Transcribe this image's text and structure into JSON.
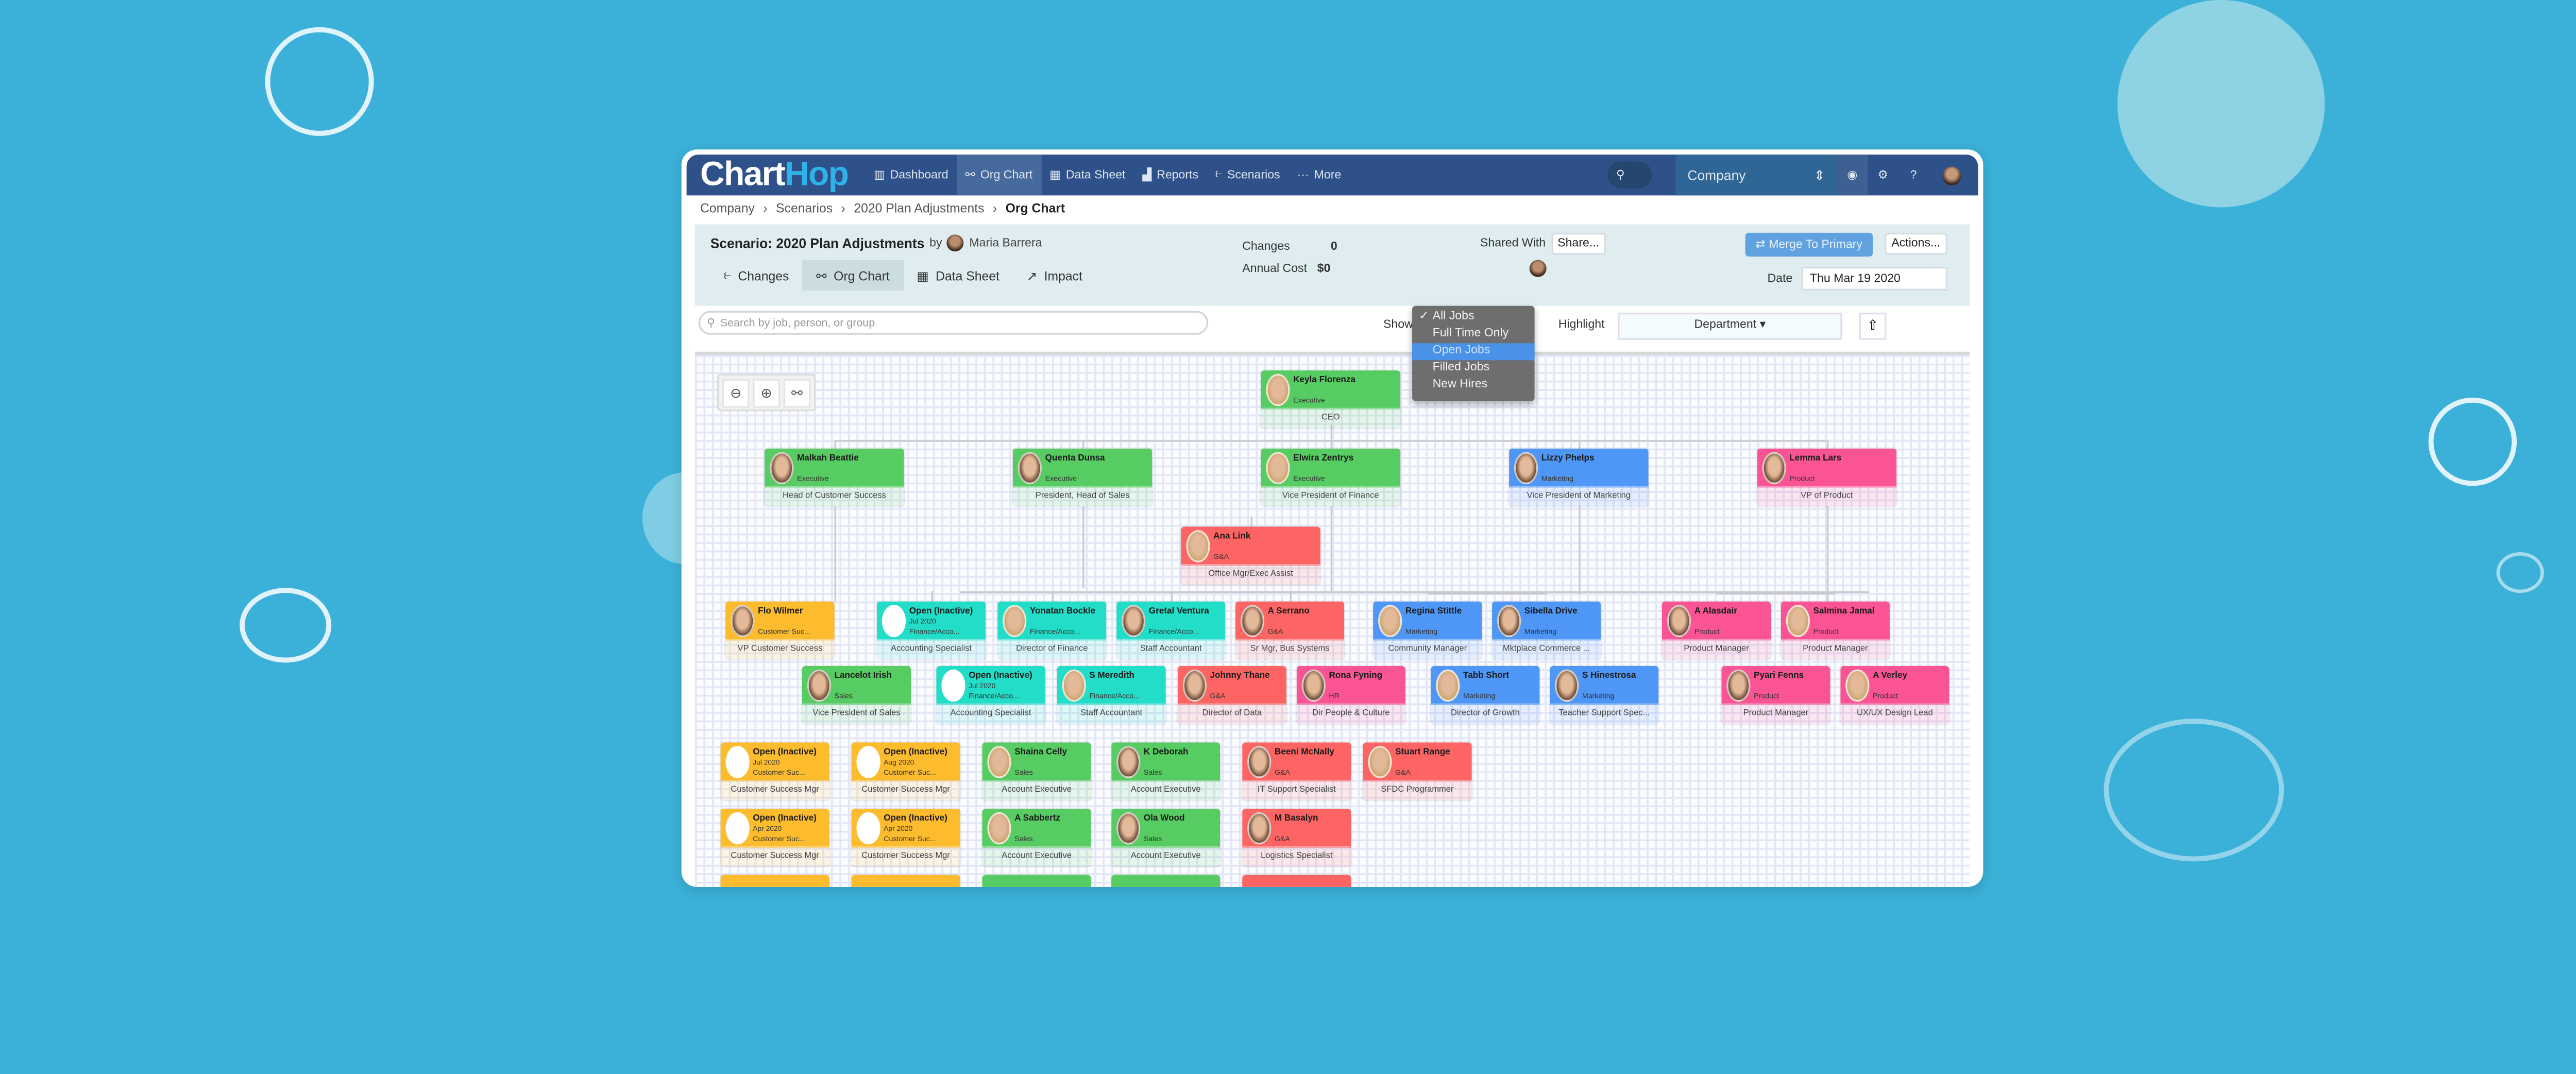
{
  "nav": {
    "logo": "ChartHop",
    "items": [
      {
        "label": "Dashboard",
        "icon": "bar-chart-icon"
      },
      {
        "label": "Org Chart",
        "icon": "org-chart-icon",
        "active": true
      },
      {
        "label": "Data Sheet",
        "icon": "table-icon"
      },
      {
        "label": "Reports",
        "icon": "reports-icon"
      },
      {
        "label": "Scenarios",
        "icon": "scenarios-icon"
      },
      {
        "label": "More",
        "icon": "more-icon"
      }
    ],
    "company_select": "Company"
  },
  "breadcrumb": [
    "Company",
    "Scenarios",
    "2020 Plan Adjustments",
    "Org Chart"
  ],
  "scenario": {
    "title": "Scenario: 2020 Plan Adjustments",
    "by": "by",
    "author": "Maria Barrera",
    "tabs": [
      {
        "label": "Changes",
        "icon": "changes-icon"
      },
      {
        "label": "Org Chart",
        "icon": "org-chart-icon",
        "active": true
      },
      {
        "label": "Data Sheet",
        "icon": "table-icon"
      },
      {
        "label": "Impact",
        "icon": "trend-icon"
      }
    ],
    "changes_label": "Changes",
    "changes_value": "0",
    "annual_cost_label": "Annual Cost",
    "annual_cost_value": "$0",
    "shared_with_label": "Shared With",
    "share_button": "Share...",
    "merge_button": "Merge To Primary",
    "actions_button": "Actions...",
    "date_label": "Date",
    "date_value": "Thu Mar 19 2020"
  },
  "toolbar": {
    "search_placeholder": "Search by job, person, or group",
    "show_label": "Show",
    "show_options": [
      "All Jobs",
      "Full Time Only",
      "Open Jobs",
      "Filled Jobs",
      "New Hires"
    ],
    "show_selected": "All Jobs",
    "show_hovered": "Open Jobs",
    "highlight_label": "Highlight",
    "highlight_value": "Department"
  },
  "colors": {
    "Executive": "#56cc62",
    "Sales": "#56cc62",
    "Finance": "#22ddc8",
    "G&A": "#fd6464",
    "HR": "#fb5494",
    "Marketing": "#4f97f7",
    "Product": "#fb5494",
    "Customer": "#fcbc2e"
  },
  "cards": [
    {
      "name": "Keyla Florenza",
      "dept": "Executive",
      "title": "CEO"
    },
    {
      "name": "Malkah Beattie",
      "dept": "Executive",
      "title": "Head of Customer Success"
    },
    {
      "name": "Quenta Dunsa",
      "dept": "Executive",
      "title": "President, Head of Sales"
    },
    {
      "name": "Elwira Zentrys",
      "dept": "Executive",
      "title": "Vice President of Finance"
    },
    {
      "name": "Lizzy Phelps",
      "dept": "Marketing",
      "title": "Vice President of Marketing"
    },
    {
      "name": "Lemma Lars",
      "dept": "Product",
      "title": "VP of Product"
    },
    {
      "name": "Ana Link",
      "dept": "G&A",
      "title": "Office Mgr/Exec Assist"
    },
    {
      "name": "Flo Wilmer",
      "dept": "Customer Suc...",
      "title": "VP Customer Success"
    },
    {
      "name": "Open (Inactive)",
      "sub": "Jul 2020",
      "dept": "Finance/Acco...",
      "title": "Accounting Specialist",
      "open": true
    },
    {
      "name": "Yonatan Bockle",
      "dept": "Finance/Acco...",
      "title": "Director of Finance"
    },
    {
      "name": "Gretal Ventura",
      "dept": "Finance/Acco...",
      "title": "Staff Accountant"
    },
    {
      "name": "A Serrano",
      "dept": "G&A",
      "title": "Sr Mgr, Bus Systems"
    },
    {
      "name": "Regina Stittle",
      "dept": "Marketing",
      "title": "Community Manager"
    },
    {
      "name": "Sibella Drive",
      "dept": "Marketing",
      "title": "Mktplace Commerce ..."
    },
    {
      "name": "A Alasdair",
      "dept": "Product",
      "title": "Product Manager"
    },
    {
      "name": "Salmina Jamal",
      "dept": "Product",
      "title": "Product Manager"
    },
    {
      "name": "Lancelot Irish",
      "dept": "Sales",
      "title": "Vice President of Sales"
    },
    {
      "name": "Open (Inactive)",
      "sub": "Jul 2020",
      "dept": "Finance/Acco...",
      "title": "Accounting Specialist",
      "open": true
    },
    {
      "name": "S Meredith",
      "dept": "Finance/Acco...",
      "title": "Staff Accountant"
    },
    {
      "name": "Johnny Thane",
      "dept": "G&A",
      "title": "Director of Data"
    },
    {
      "name": "Rona Fyning",
      "dept": "HR",
      "title": "Dir People & Culture"
    },
    {
      "name": "Tabb Short",
      "dept": "Marketing",
      "title": "Director of Growth"
    },
    {
      "name": "S Hinestrosa",
      "dept": "Marketing",
      "title": "Teacher Support Spec..."
    },
    {
      "name": "Pyari Fenns",
      "dept": "Product",
      "title": "Product Manager"
    },
    {
      "name": "A Verley",
      "dept": "Product",
      "title": "UX/UX Design Lead"
    },
    {
      "name": "Open (Inactive)",
      "sub": "Jul 2020",
      "dept": "Customer Suc...",
      "title": "Customer Success Mgr",
      "open": true
    },
    {
      "name": "Open (Inactive)",
      "sub": "Aug 2020",
      "dept": "Customer Suc...",
      "title": "Customer Success Mgr",
      "open": true
    },
    {
      "name": "Shaina Celly",
      "dept": "Sales",
      "title": "Account Executive"
    },
    {
      "name": "K Deborah",
      "dept": "Sales",
      "title": "Account Executive"
    },
    {
      "name": "Beeni McNally",
      "dept": "G&A",
      "title": "IT Support Specialist"
    },
    {
      "name": "Stuart Range",
      "dept": "G&A",
      "title": "SFDC Programmer"
    },
    {
      "name": "Open (Inactive)",
      "sub": "Apr 2020",
      "dept": "Customer Suc...",
      "title": "Customer Success Mgr",
      "open": true
    },
    {
      "name": "Open (Inactive)",
      "sub": "Apr 2020",
      "dept": "Customer Suc...",
      "title": "Customer Success Mgr",
      "open": true
    },
    {
      "name": "A Sabbertz",
      "dept": "Sales",
      "title": "Account Executive"
    },
    {
      "name": "Ola Wood",
      "dept": "Sales",
      "title": "Account Executive"
    },
    {
      "name": "M Basalyn",
      "dept": "G&A",
      "title": "Logistics Specialist"
    }
  ]
}
